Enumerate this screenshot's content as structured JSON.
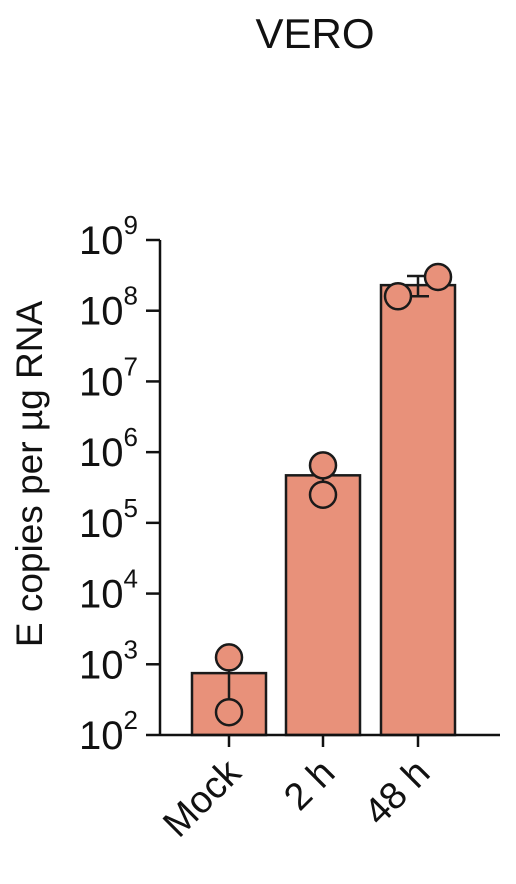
{
  "chart_data": {
    "type": "bar",
    "title": "VERO",
    "ylabel": "E copies per µg RNA",
    "xlabel": "",
    "yscale": "log",
    "ylim": [
      100,
      1000000000
    ],
    "yticks": [
      {
        "base": "10",
        "exp": "2",
        "value": 100
      },
      {
        "base": "10",
        "exp": "3",
        "value": 1000
      },
      {
        "base": "10",
        "exp": "4",
        "value": 10000
      },
      {
        "base": "10",
        "exp": "5",
        "value": 100000
      },
      {
        "base": "10",
        "exp": "6",
        "value": 1000000
      },
      {
        "base": "10",
        "exp": "7",
        "value": 10000000
      },
      {
        "base": "10",
        "exp": "8",
        "value": 100000000
      },
      {
        "base": "10",
        "exp": "9",
        "value": 1000000000
      }
    ],
    "categories": [
      "Mock",
      "2 h",
      "48 h"
    ],
    "values": [
      750,
      470000,
      230000000
    ],
    "error_low": [
      200,
      250000,
      160000000
    ],
    "error_high": [
      1300,
      700000,
      310000000
    ],
    "points": [
      [
        1250,
        210
      ],
      [
        650000,
        250000
      ],
      [
        160000000,
        300000000
      ]
    ],
    "bar_color": "#e8917a",
    "point_color": "#e8917a",
    "grid": false,
    "legend": "none"
  }
}
